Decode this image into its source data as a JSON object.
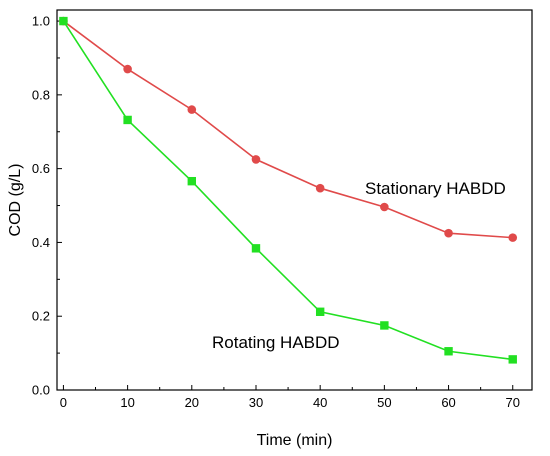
{
  "chart_data": {
    "type": "line",
    "xlabel": "Time (min)",
    "ylabel": "COD (g/L)",
    "xlim": [
      -1,
      73
    ],
    "ylim": [
      0,
      1.03
    ],
    "x_ticks": [
      0,
      10,
      20,
      30,
      40,
      50,
      60,
      70
    ],
    "x_tick_labels": [
      "0",
      "10",
      "20",
      "30",
      "40",
      "50",
      "60",
      "70"
    ],
    "y_ticks": [
      0.0,
      0.2,
      0.4,
      0.6,
      0.8,
      1.0
    ],
    "y_tick_labels": [
      "0.0",
      "0.2",
      "0.4",
      "0.6",
      "0.8",
      "1.0"
    ],
    "grid": false,
    "series": [
      {
        "name": "Stationary HABDD",
        "color": "#e04a4a",
        "marker": "circle",
        "x": [
          0,
          10,
          20,
          30,
          40,
          50,
          60,
          70
        ],
        "y": [
          1.0,
          0.87,
          0.76,
          0.625,
          0.547,
          0.496,
          0.425,
          0.413
        ]
      },
      {
        "name": "Rotating HABDD",
        "color": "#22e022",
        "marker": "square",
        "x": [
          0,
          10,
          20,
          30,
          40,
          50,
          60,
          70
        ],
        "y": [
          1.0,
          0.732,
          0.566,
          0.384,
          0.212,
          0.175,
          0.105,
          0.083
        ]
      }
    ],
    "annotations": [
      "Stationary HABDD",
      "Rotating HABDD"
    ]
  }
}
